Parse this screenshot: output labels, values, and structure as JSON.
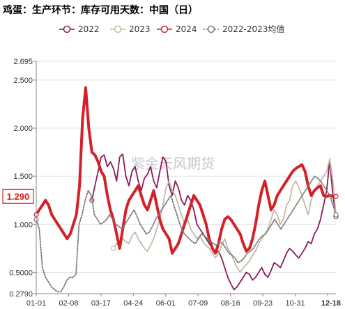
{
  "chart_data": {
    "type": "line",
    "title": "鸡蛋：生产环节：库存可用天数：中国（日）",
    "watermark": "紫金天风期货",
    "xlabel": "",
    "ylabel": "",
    "ylim": [
      0.279,
      2.695
    ],
    "y_ticks": [
      0.279,
      0.5,
      1.0,
      1.5,
      2.0,
      2.5,
      2.695
    ],
    "y_tick_labels": [
      "0.2790",
      "0.5000",
      "1.000",
      "1.500",
      "2.000",
      "2.500",
      "2.695"
    ],
    "x_tick_labels": [
      "01-01",
      "02-08",
      "03-17",
      "04-24",
      "06-01",
      "07-09",
      "08-16",
      "09-23",
      "10-31",
      "12-18"
    ],
    "highlight_label": "1.290",
    "highlight_value": 1.29,
    "legend_position": "top",
    "grid": true,
    "series": [
      {
        "name": "2022",
        "color": "#8b1a5c",
        "width": 1.8,
        "y": [
          null,
          null,
          null,
          null,
          null,
          null,
          null,
          null,
          null,
          null,
          null,
          null,
          null,
          null,
          null,
          null,
          null,
          null,
          1.25,
          1.4,
          1.55,
          1.7,
          1.72,
          1.6,
          1.65,
          1.58,
          1.45,
          1.7,
          1.73,
          1.5,
          1.4,
          1.55,
          1.6,
          1.45,
          1.35,
          1.48,
          1.52,
          1.6,
          1.45,
          1.38,
          1.55,
          1.7,
          1.65,
          1.4,
          1.3,
          1.45,
          1.38,
          1.25,
          1.2,
          1.3,
          1.25,
          1.15,
          1.0,
          0.95,
          0.9,
          0.85,
          0.8,
          0.75,
          0.7,
          0.72,
          0.65,
          0.55,
          0.45,
          0.38,
          0.32,
          0.35,
          0.4,
          0.45,
          0.5,
          0.48,
          0.42,
          0.45,
          0.5,
          0.55,
          0.48,
          0.45,
          0.52,
          0.6,
          0.58,
          0.55,
          0.62,
          0.7,
          0.75,
          0.72,
          0.68,
          0.65,
          0.7,
          0.75,
          0.82,
          0.8,
          0.9,
          0.95,
          1.05,
          1.2,
          1.35,
          1.67,
          1.3,
          1.08
        ]
      },
      {
        "name": "2023",
        "color": "#c5b9a6",
        "width": 1.8,
        "y": [
          null,
          null,
          null,
          null,
          null,
          null,
          null,
          null,
          null,
          null,
          null,
          null,
          null,
          null,
          null,
          null,
          null,
          null,
          null,
          null,
          null,
          null,
          null,
          null,
          null,
          0.75,
          0.8,
          0.78,
          0.85,
          0.82,
          0.8,
          0.88,
          0.92,
          0.85,
          0.8,
          0.75,
          0.72,
          0.78,
          0.85,
          0.95,
          1.05,
          1.2,
          1.38,
          1.45,
          1.35,
          1.3,
          1.2,
          1.1,
          1.0,
          1.05,
          0.95,
          0.9,
          0.85,
          0.88,
          0.82,
          0.78,
          0.75,
          0.7,
          0.65,
          0.7,
          0.78,
          0.85,
          0.75,
          0.7,
          0.62,
          0.55,
          0.5,
          0.55,
          0.58,
          0.62,
          0.68,
          0.72,
          0.8,
          0.85,
          0.9,
          0.95,
          1.05,
          1.15,
          1.1,
          1.0,
          1.05,
          1.2,
          1.25,
          1.4,
          1.45,
          1.38,
          1.3,
          1.2,
          1.1,
          1.25,
          1.35,
          1.4,
          1.45,
          1.5,
          1.55,
          1.68,
          1.45,
          1.1
        ]
      },
      {
        "name": "2024",
        "color": "#d42127",
        "width": 4,
        "y": [
          1.1,
          1.15,
          1.2,
          1.25,
          1.2,
          1.1,
          1.05,
          1.0,
          0.95,
          0.9,
          0.85,
          0.9,
          1.0,
          1.1,
          1.4,
          2.1,
          2.42,
          2.0,
          1.75,
          1.72,
          1.65,
          1.55,
          1.5,
          1.3,
          1.15,
          1.05,
          0.9,
          0.75,
          0.95,
          1.15,
          1.25,
          1.3,
          1.35,
          1.4,
          1.3,
          1.2,
          1.15,
          1.25,
          1.35,
          1.2,
          1.05,
          0.95,
          0.9,
          0.85,
          0.7,
          0.75,
          0.8,
          0.9,
          1.0,
          1.1,
          1.2,
          1.3,
          1.25,
          1.2,
          1.1,
          1.0,
          0.85,
          0.75,
          0.7,
          0.8,
          0.95,
          1.05,
          1.08,
          1.05,
          1.0,
          0.95,
          0.9,
          0.8,
          0.72,
          0.75,
          0.85,
          1.0,
          1.2,
          1.35,
          1.45,
          1.3,
          1.15,
          1.2,
          1.3,
          1.35,
          1.4,
          1.45,
          1.5,
          1.55,
          1.58,
          1.6,
          1.62,
          1.55,
          1.4,
          1.3,
          1.35,
          1.38,
          1.4,
          1.3,
          1.29,
          1.3,
          1.29,
          1.29
        ]
      },
      {
        "name": "2022-2023均值",
        "color": "#7a7a7a",
        "width": 1.8,
        "dash": "2,2",
        "y": [
          1.05,
          0.95,
          0.55,
          0.45,
          0.4,
          0.35,
          0.32,
          0.3,
          0.3,
          0.35,
          0.42,
          0.45,
          0.45,
          0.48,
          1.0,
          1.1,
          1.25,
          1.35,
          1.3,
          1.1,
          1.05,
          1.0,
          1.02,
          1.05,
          1.1,
          1.05,
          1.0,
          0.98,
          0.95,
          1.0,
          1.05,
          1.1,
          1.15,
          1.08,
          1.0,
          0.95,
          0.9,
          0.92,
          0.98,
          1.05,
          1.1,
          1.15,
          1.2,
          1.25,
          1.3,
          1.2,
          1.1,
          1.0,
          0.92,
          0.88,
          0.85,
          0.82,
          0.8,
          0.85,
          0.9,
          0.88,
          0.85,
          0.82,
          0.8,
          0.78,
          0.82,
          0.8,
          0.75,
          0.7,
          0.68,
          0.65,
          0.6,
          0.62,
          0.65,
          0.7,
          0.72,
          0.75,
          0.8,
          0.85,
          0.88,
          0.9,
          0.95,
          1.0,
          1.05,
          1.0,
          0.95,
          1.0,
          1.05,
          1.1,
          1.15,
          1.2,
          1.25,
          1.3,
          1.35,
          1.4,
          1.45,
          1.5,
          1.48,
          1.45,
          1.4,
          1.35,
          1.3,
          1.2,
          1.1
        ]
      }
    ]
  }
}
